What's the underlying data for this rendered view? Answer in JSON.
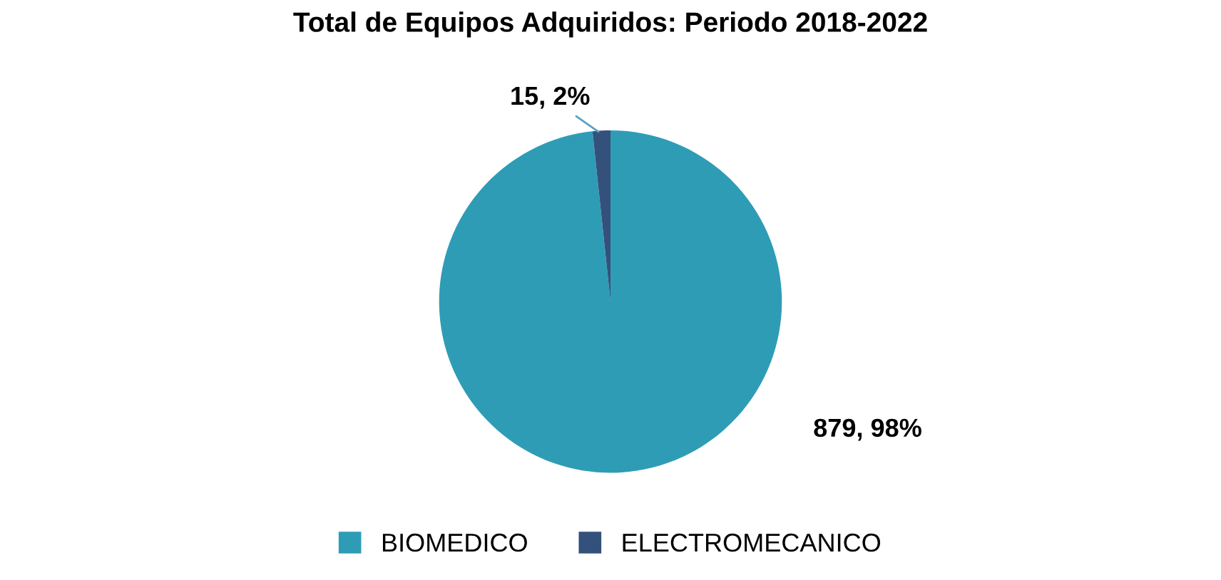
{
  "chart_data": {
    "type": "pie",
    "title": "Total de Equipos Adquiridos: Periodo 2018-2022",
    "categories": [
      "BIOMEDICO",
      "ELECTROMECANICO"
    ],
    "values": [
      879,
      15
    ],
    "colors": [
      "#2f9cb6",
      "#34517c"
    ],
    "value_labels": [
      "879, 98%",
      "15, 2%"
    ],
    "legend": "bottom"
  }
}
